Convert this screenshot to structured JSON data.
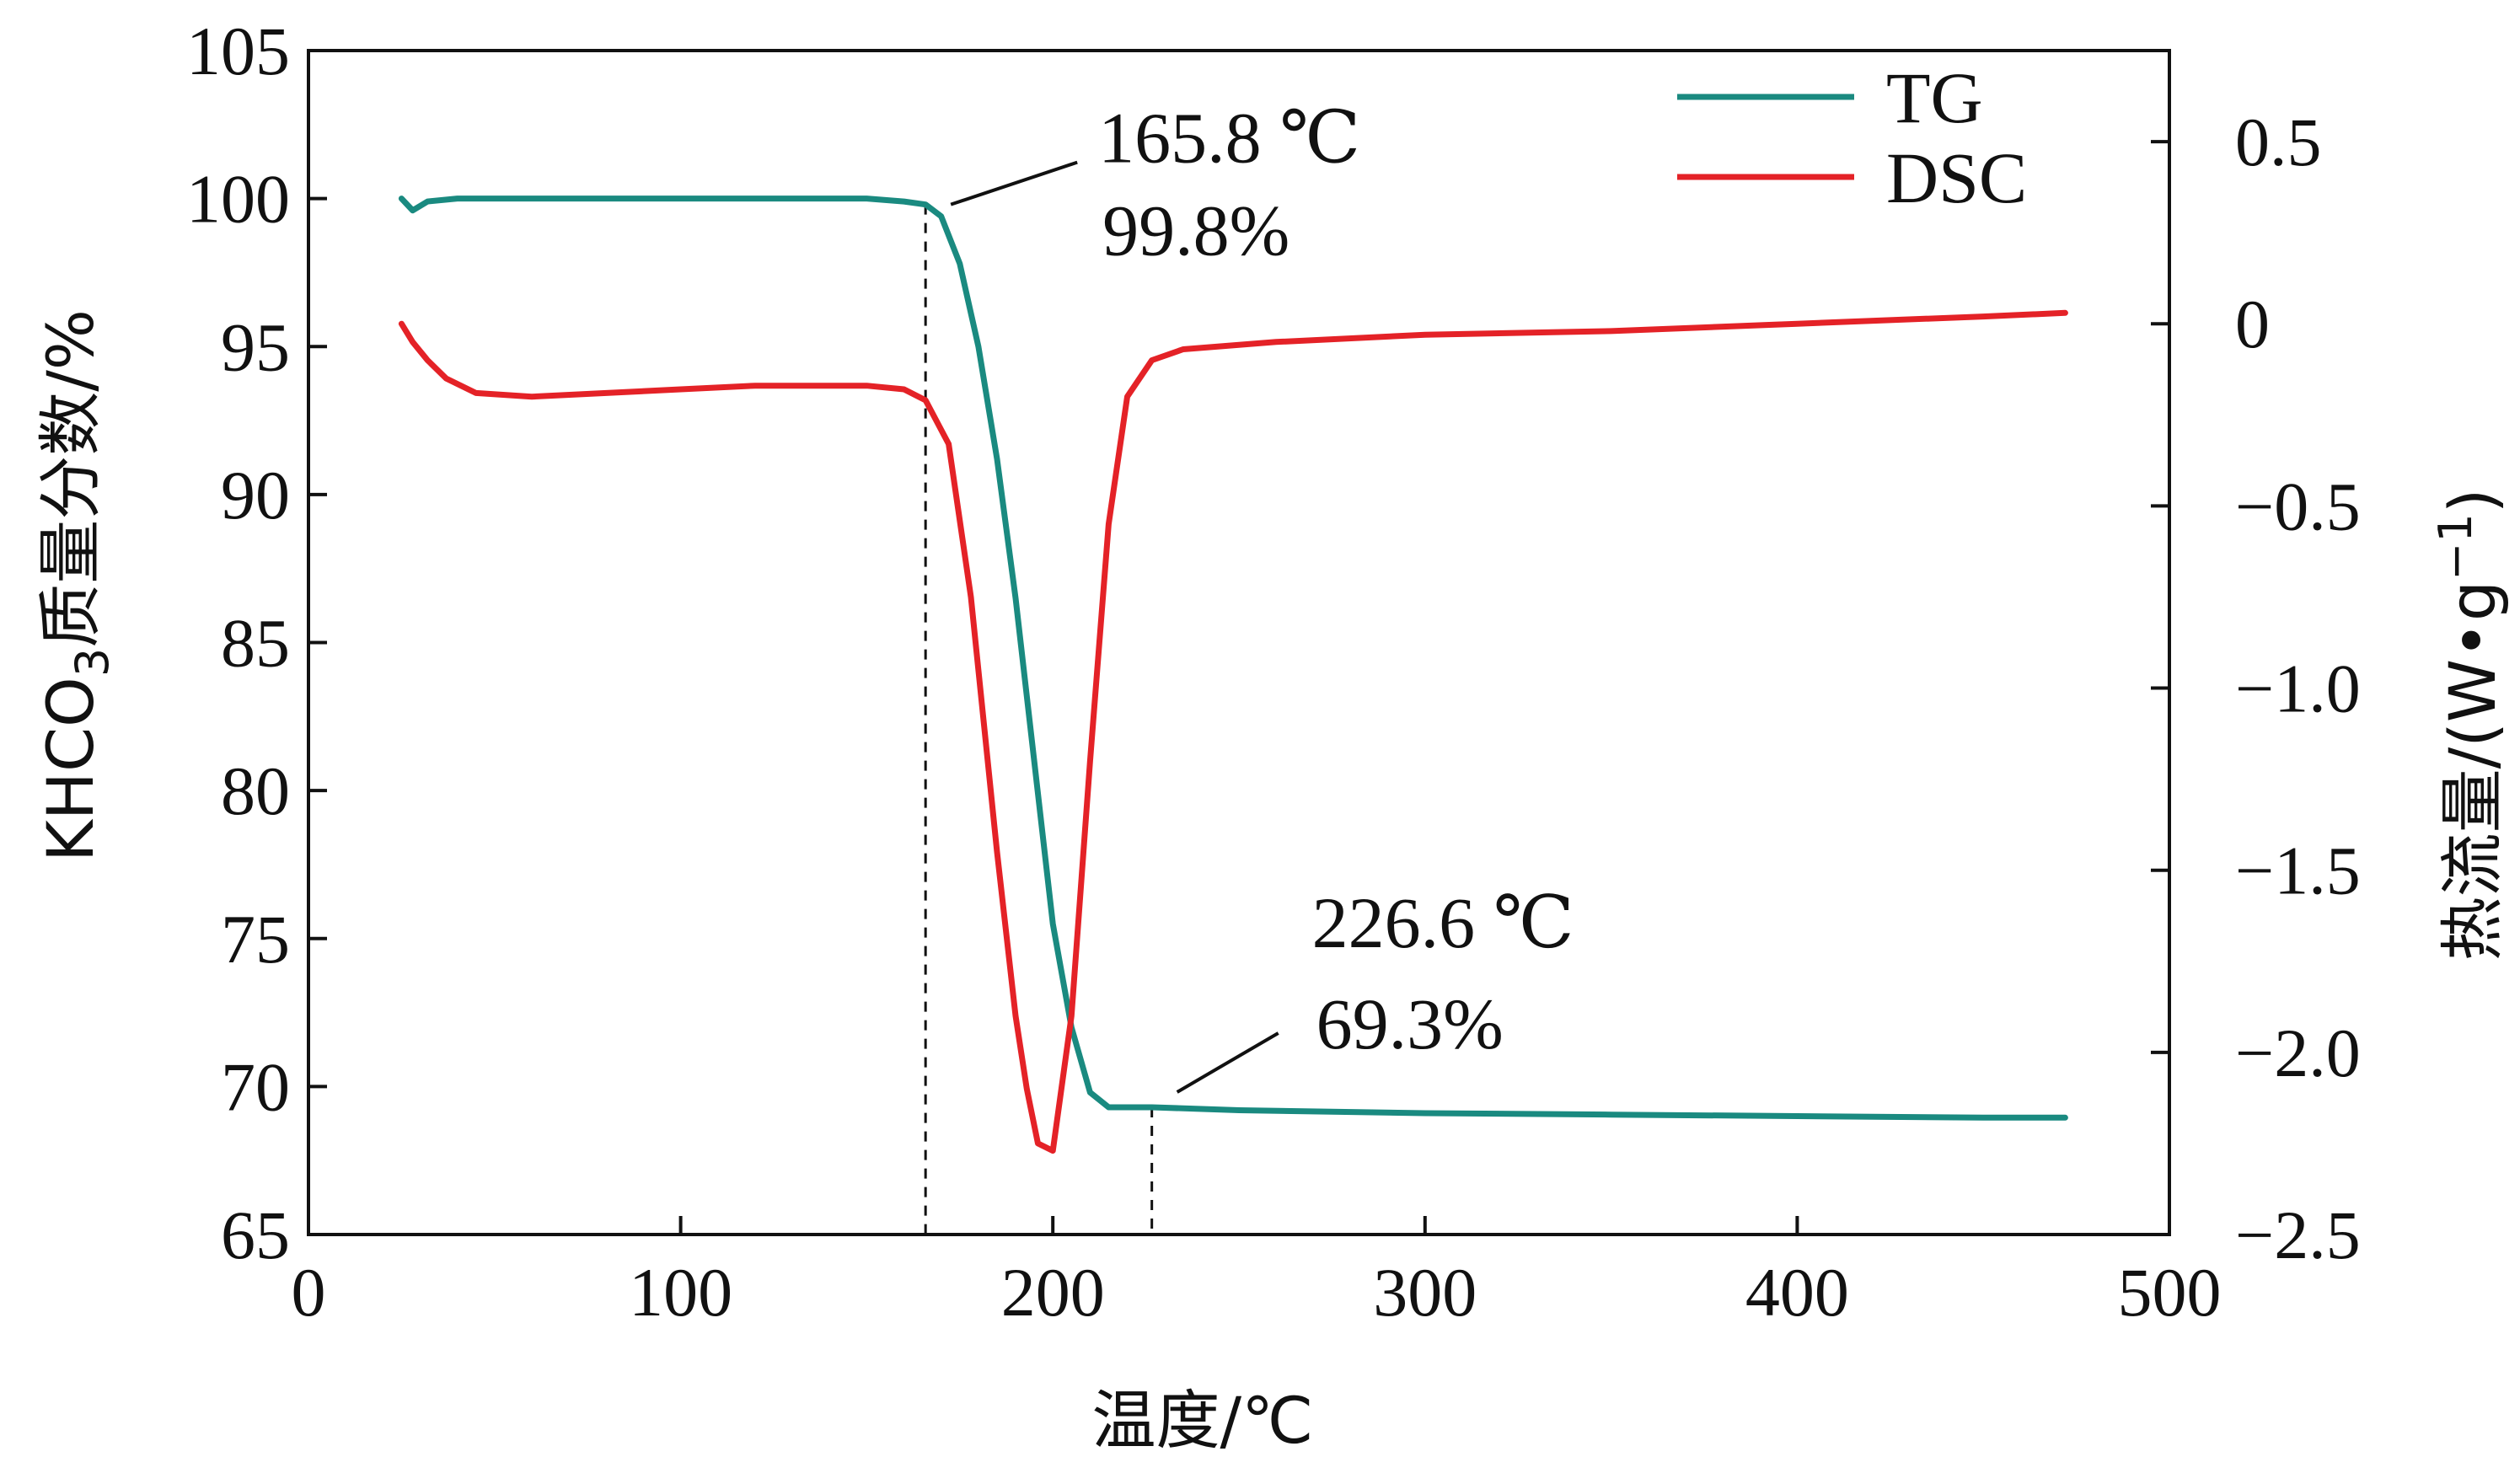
{
  "colors": {
    "tg": "#1a8a80",
    "dsc": "#e42227",
    "axis": "#111111"
  },
  "labels": {
    "xlabel": "温度/℃",
    "ylabel_left_prefix": "KHCO",
    "ylabel_left_sub": "3",
    "ylabel_left_suffix": "质量分数/%",
    "ylabel_right_prefix": "热流量/(W•g",
    "ylabel_right_sup": "−1",
    "ylabel_right_suffix": ")"
  },
  "chart_data": {
    "type": "line",
    "xlim": [
      0,
      500
    ],
    "ylim_left": [
      65,
      105
    ],
    "ylim_right": [
      -2.5,
      0.75
    ],
    "xticks": [
      0,
      100,
      200,
      300,
      400,
      500
    ],
    "yticks_left": [
      65,
      70,
      75,
      80,
      85,
      90,
      95,
      100,
      105
    ],
    "yticks_right": [
      -2.5,
      -2.0,
      -1.5,
      -1.0,
      -0.5,
      0,
      0.5
    ],
    "ytick_labels_right": [
      "−2.5",
      "−2.0",
      "−1.5",
      "−1.0",
      "−0.5",
      "0",
      "0.5"
    ],
    "legend_position": "top-right",
    "series": [
      {
        "name": "TG",
        "axis": "left",
        "x": [
          25,
          28,
          32,
          40,
          60,
          100,
          150,
          160,
          165.8,
          170,
          175,
          180,
          185,
          190,
          195,
          200,
          205,
          210,
          215,
          220,
          226.6,
          250,
          300,
          350,
          400,
          450,
          472
        ],
        "y": [
          100,
          99.6,
          99.9,
          100,
          100,
          100,
          100,
          99.9,
          99.8,
          99.4,
          97.8,
          95,
          91.2,
          86.5,
          81,
          75.5,
          72,
          69.8,
          69.3,
          69.3,
          69.3,
          69.2,
          69.1,
          69.05,
          69.0,
          68.95,
          68.95
        ]
      },
      {
        "name": "DSC",
        "axis": "right",
        "x": [
          25,
          28,
          32,
          37,
          45,
          60,
          80,
          100,
          120,
          150,
          160,
          165.8,
          172,
          178,
          185,
          190,
          193,
          196,
          200,
          205,
          210,
          215,
          220,
          226.6,
          235,
          260,
          300,
          350,
          400,
          450,
          472
        ],
        "y": [
          0,
          -0.05,
          -0.1,
          -0.15,
          -0.19,
          -0.2,
          -0.19,
          -0.18,
          -0.17,
          -0.17,
          -0.18,
          -0.21,
          -0.33,
          -0.75,
          -1.45,
          -1.9,
          -2.1,
          -2.25,
          -2.27,
          -1.9,
          -1.2,
          -0.55,
          -0.2,
          -0.1,
          -0.07,
          -0.05,
          -0.03,
          -0.02,
          0,
          0.02,
          0.03
        ]
      }
    ],
    "annotations": [
      {
        "line1": "165.8 ℃",
        "line2": "99.8%",
        "x": 165.8,
        "y": 99.8
      },
      {
        "line1": "226.6 ℃",
        "line2": "69.3%",
        "x": 226.6,
        "y": 69.3
      }
    ]
  }
}
